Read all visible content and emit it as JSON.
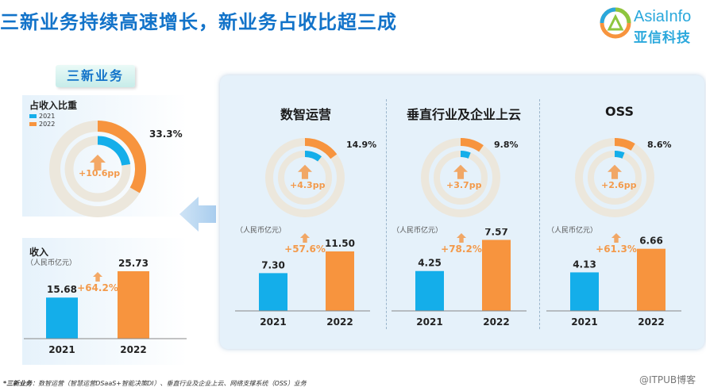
{
  "header": {
    "title": "三新业务持续高速增长，新业务占收比超三成",
    "logo_text": "AsiaInfo",
    "logo_sub": "亚信科技"
  },
  "tag": "三新业务",
  "colors": {
    "y2021": "#14aeea",
    "y2022": "#f7943e",
    "ring_bg": "#ece7dc",
    "growth": "#f39a4b"
  },
  "left": {
    "share_title": "占收入比重",
    "legend": [
      "2021",
      "2022"
    ],
    "share_pct_label": "33.3%",
    "share_pp": "+10.6pp",
    "revenue_title": "收入",
    "revenue_unit": "（人民币亿元）",
    "revenue_growth": "+64.2%"
  },
  "sections": [
    {
      "title": "数智运营",
      "pct_label": "14.9%",
      "pp": "+4.3pp",
      "unit": "（人民币亿元）",
      "growth": "+57.6%"
    },
    {
      "title": "垂直行业及企业上云",
      "pct_label": "9.8%",
      "pp": "+3.7pp",
      "unit": "（人民币亿元）",
      "growth": "+78.2%"
    },
    {
      "title": "OSS",
      "pct_label": "8.6%",
      "pp": "+2.6pp",
      "unit": "（人民币亿元）",
      "growth": "+61.3%"
    }
  ],
  "chart_data": [
    {
      "type": "pie",
      "name": "三新业务占收入比重",
      "series": [
        {
          "name": "2021",
          "value": 22.7
        },
        {
          "name": "2022",
          "value": 33.3
        }
      ],
      "unit": "%"
    },
    {
      "type": "bar",
      "name": "三新业务收入",
      "categories": [
        "2021",
        "2022"
      ],
      "values": [
        15.68,
        25.73
      ],
      "labels": [
        "15.68",
        "25.73"
      ]
    },
    {
      "type": "pie",
      "name": "数智运营",
      "series": [
        {
          "name": "2021",
          "value": 10.6
        },
        {
          "name": "2022",
          "value": 14.9
        }
      ],
      "unit": "%"
    },
    {
      "type": "bar",
      "name": "数智运营",
      "categories": [
        "2021",
        "2022"
      ],
      "values": [
        7.3,
        11.5
      ],
      "labels": [
        "7.30",
        "11.50"
      ]
    },
    {
      "type": "pie",
      "name": "垂直行业及企业上云",
      "series": [
        {
          "name": "2021",
          "value": 6.1
        },
        {
          "name": "2022",
          "value": 9.8
        }
      ],
      "unit": "%"
    },
    {
      "type": "bar",
      "name": "垂直行业及企业上云",
      "categories": [
        "2021",
        "2022"
      ],
      "values": [
        4.25,
        7.57
      ],
      "labels": [
        "4.25",
        "7.57"
      ]
    },
    {
      "type": "pie",
      "name": "OSS",
      "series": [
        {
          "name": "2021",
          "value": 6.0
        },
        {
          "name": "2022",
          "value": 8.6
        }
      ],
      "unit": "%"
    },
    {
      "type": "bar",
      "name": "OSS",
      "categories": [
        "2021",
        "2022"
      ],
      "values": [
        4.13,
        6.66
      ],
      "labels": [
        "4.13",
        "6.66"
      ]
    }
  ],
  "footnote": {
    "lead": "*三新业务",
    "text": "：数智运营（智慧运营DSaaS+智能决策DI）、垂直行业及企业上云、网络支撑系统（OSS）业务"
  },
  "watermark": "@ITPUB博客"
}
